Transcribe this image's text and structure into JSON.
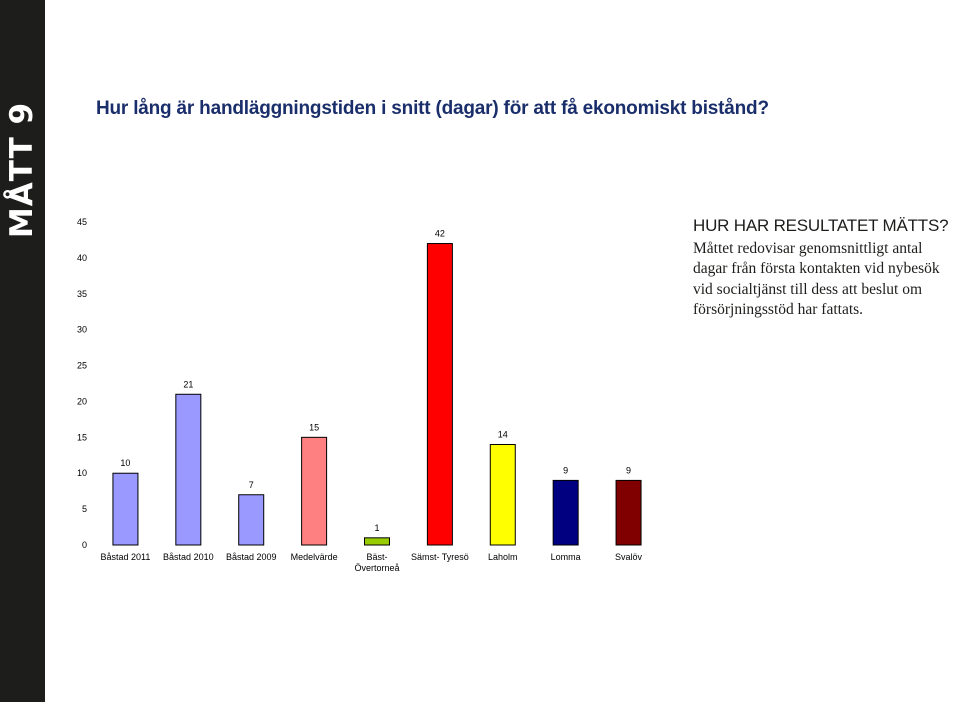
{
  "sidebar": {
    "label": "MÅTT 9"
  },
  "title": "Hur lång är handläggningstiden i snitt (dagar) för att få ekonomiskt bistånd?",
  "info": {
    "heading": "HUR HAR RESULTATET MÄTTS?",
    "body": "Måttet redovisar genomsnittligt antal dagar från första kontakten vid nybesök vid socialtjänst till dess att beslut om försörjningsstöd har fattats."
  },
  "chart_data": {
    "type": "bar",
    "categories": [
      "Båstad 2011",
      "Båstad 2010",
      "Båstad 2009",
      "Medelvärde",
      "Bäst- Övertorneå",
      "Sämst- Tyresö",
      "Laholm",
      "Lomma",
      "Svalöv"
    ],
    "category_lines": [
      [
        "Båstad 2011"
      ],
      [
        "Båstad 2010"
      ],
      [
        "Båstad 2009"
      ],
      [
        "Medelvärde"
      ],
      [
        "Bäst-",
        "Övertorneå"
      ],
      [
        "Sämst- Tyresö"
      ],
      [
        "Laholm"
      ],
      [
        "Lomma"
      ],
      [
        "Svalöv"
      ]
    ],
    "values": [
      10,
      21,
      7,
      15,
      1,
      42,
      14,
      9,
      9
    ],
    "colors": [
      "#9999ff",
      "#9999ff",
      "#9999ff",
      "#ff8080",
      "#99cc00",
      "#ff0000",
      "#ffff00",
      "#000080",
      "#800000"
    ],
    "ylim": [
      0,
      45
    ],
    "yticks": [
      0,
      5,
      10,
      15,
      20,
      25,
      30,
      35,
      40,
      45
    ],
    "grid": false,
    "legend": "none"
  }
}
